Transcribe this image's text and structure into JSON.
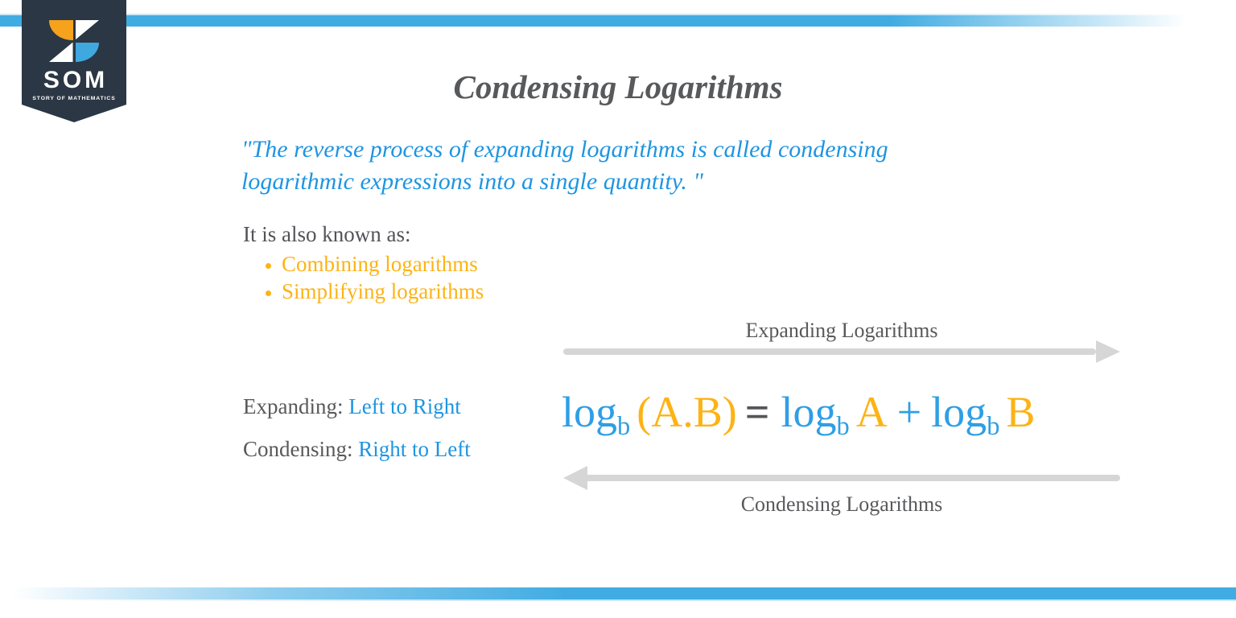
{
  "brand": {
    "acronym": "SOM",
    "tagline": "STORY OF MATHEMATICS",
    "badge_bg": "#2b3744",
    "logo_orange": "#f5a21c",
    "logo_blue": "#3fa8df"
  },
  "accents": {
    "stripe_blue": "#41ace2",
    "text_blue": "#1e95e1",
    "text_orange": "#fdb315",
    "text_gray": "#58595b",
    "arrow_gray": "#d6d6d6"
  },
  "title": "Condensing Logarithms",
  "quote": {
    "line1": "\"The reverse process of expanding logarithms is called condensing",
    "line2": "logarithmic expressions into a single quantity. \""
  },
  "known_as": {
    "label": "It is also known as:",
    "items": [
      "Combining logarithms",
      "Simplifying logarithms"
    ]
  },
  "direction_notes": [
    {
      "label": "Expanding:",
      "value": "Left to Right"
    },
    {
      "label": "Condensing:",
      "value": "Right to Left"
    }
  ],
  "diagram": {
    "top_arrow_label": "Expanding Logarithms",
    "bottom_arrow_label": "Condensing Logarithms",
    "formula": {
      "log1": "log",
      "sub1": "b",
      "arg1": "(A.B)",
      "equals": "=",
      "log2": "log",
      "sub2": "b",
      "arg2": "A",
      "plus": "+",
      "log3": "log",
      "sub3": "b",
      "arg3": "B"
    }
  }
}
